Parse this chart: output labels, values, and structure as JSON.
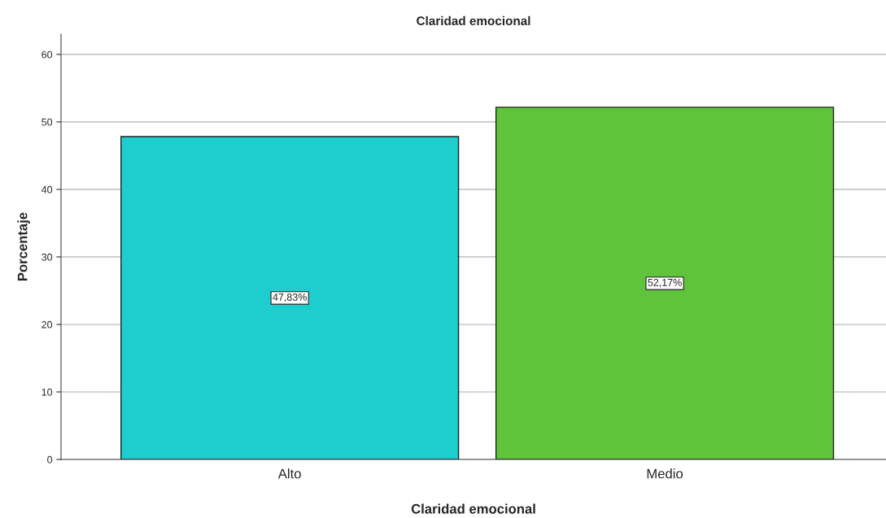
{
  "chart_data": {
    "type": "bar",
    "title": "Claridad emocional",
    "xlabel": "Claridad emocional",
    "ylabel": "Porcentaje",
    "categories": [
      "Alto",
      "Medio"
    ],
    "values": [
      47.83,
      52.17
    ],
    "colors": [
      "#1ecece",
      "#5fc43a"
    ],
    "value_labels": [
      "47,83%",
      "52,17%"
    ],
    "ylim": [
      0,
      63
    ],
    "yticks": [
      0,
      10,
      20,
      30,
      40,
      50,
      60
    ],
    "grid": "y",
    "legend": false
  }
}
